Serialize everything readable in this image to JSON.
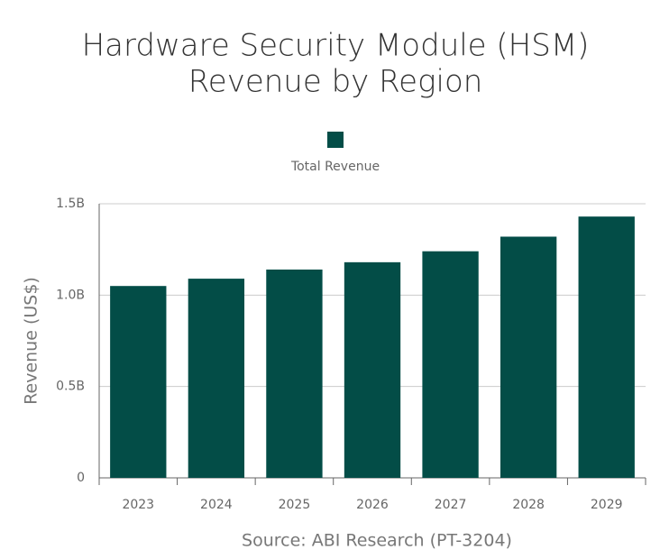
{
  "chart_data": {
    "type": "bar",
    "title": [
      "Hardware Security Module (HSM)",
      "Revenue by Region"
    ],
    "y_label": "Revenue (US$)",
    "x_label": "Source: ABI Research (PT-3204)",
    "categories": [
      "2023",
      "2024",
      "2025",
      "2026",
      "2027",
      "2028",
      "2029"
    ],
    "series": [
      {
        "name": "Total Revenue",
        "color": "#034d47",
        "values": [
          1050000000,
          1090000000,
          1140000000,
          1180000000,
          1240000000,
          1320000000,
          1430000000
        ]
      }
    ],
    "ylim": [
      0,
      1500000000
    ],
    "yticks": [
      0,
      {
        "value": 500000000,
        "label": "0.5B"
      },
      {
        "value": 1000000000,
        "label": "1.0B"
      },
      {
        "value": 1500000000,
        "label": "1.5B"
      }
    ],
    "grid": true
  }
}
